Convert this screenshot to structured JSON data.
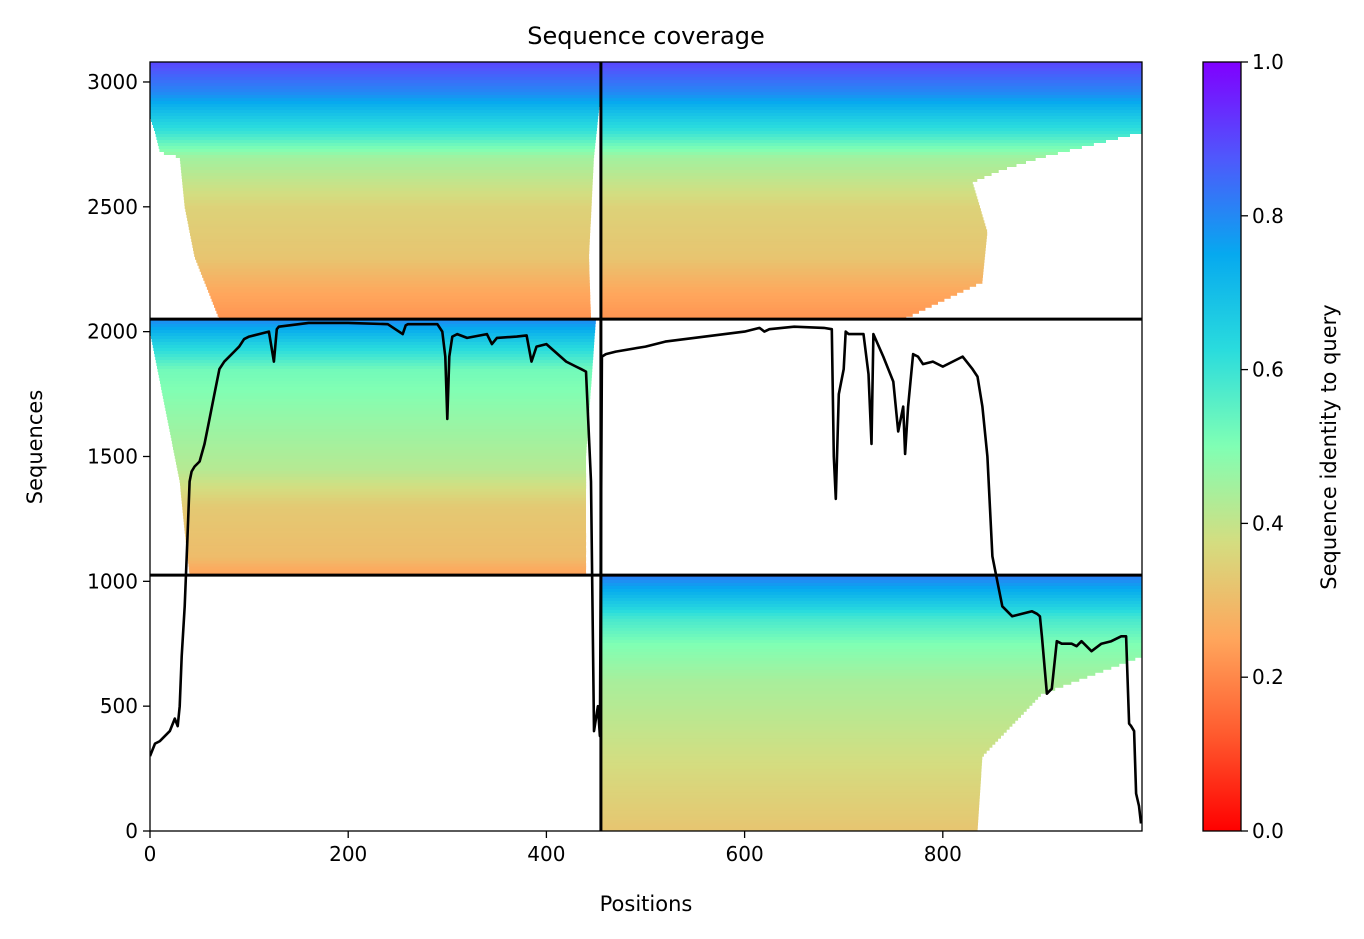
{
  "chart_data": {
    "type": "heatmap",
    "title": "Sequence coverage",
    "xlabel": "Positions",
    "ylabel": "Sequences",
    "xlim": [
      0,
      1001
    ],
    "ylim": [
      0,
      3080
    ],
    "xticks": [
      0,
      200,
      400,
      600,
      800
    ],
    "yticks": [
      0,
      500,
      1000,
      1500,
      2000,
      2500,
      3000
    ],
    "colorbar": {
      "label": "Sequence identity to query",
      "colormap": "rainbow",
      "range": [
        0,
        1
      ],
      "ticks": [
        "0.0",
        "0.2",
        "0.4",
        "0.6",
        "0.8",
        "1.0"
      ]
    },
    "block_boundaries": {
      "positions": [
        455
      ],
      "sequences": [
        1025,
        2050
      ]
    },
    "blocks": [
      {
        "x_range": [
          0,
          455
        ],
        "y_range": [
          2050,
          3080
        ],
        "start_profile": [
          [
            2050,
            70
          ],
          [
            2150,
            60
          ],
          [
            2300,
            45
          ],
          [
            2500,
            35
          ],
          [
            2700,
            30
          ],
          [
            2720,
            10
          ],
          [
            2800,
            5
          ],
          [
            2860,
            0
          ],
          [
            3080,
            0
          ]
        ],
        "end_profile": [
          [
            2050,
            445
          ],
          [
            2300,
            443
          ],
          [
            2700,
            448
          ],
          [
            2960,
            455
          ],
          [
            3080,
            455
          ]
        ],
        "identity_profile": [
          [
            2050,
            0.22
          ],
          [
            2150,
            0.25
          ],
          [
            2300,
            0.32
          ],
          [
            2500,
            0.35
          ],
          [
            2700,
            0.45
          ],
          [
            2800,
            0.6
          ],
          [
            2900,
            0.72
          ],
          [
            2960,
            0.8
          ],
          [
            3080,
            0.9
          ]
        ]
      },
      {
        "x_range": [
          455,
          1001
        ],
        "y_range": [
          2050,
          3080
        ],
        "start_profile": [
          [
            2050,
            455
          ],
          [
            3080,
            455
          ]
        ],
        "end_profile": [
          [
            2050,
            760
          ],
          [
            2200,
            840
          ],
          [
            2400,
            845
          ],
          [
            2600,
            830
          ],
          [
            2650,
            860
          ],
          [
            2700,
            900
          ],
          [
            2800,
            1001
          ],
          [
            3080,
            1001
          ]
        ],
        "identity_profile": [
          [
            2050,
            0.22
          ],
          [
            2150,
            0.25
          ],
          [
            2300,
            0.32
          ],
          [
            2500,
            0.35
          ],
          [
            2700,
            0.45
          ],
          [
            2800,
            0.6
          ],
          [
            2900,
            0.72
          ],
          [
            2960,
            0.8
          ],
          [
            3080,
            0.9
          ]
        ]
      },
      {
        "x_range": [
          0,
          455
        ],
        "y_range": [
          1025,
          2050
        ],
        "start_profile": [
          [
            1025,
            40
          ],
          [
            1200,
            35
          ],
          [
            1400,
            30
          ],
          [
            1700,
            15
          ],
          [
            1900,
            5
          ],
          [
            2000,
            0
          ],
          [
            2050,
            0
          ]
        ],
        "end_profile": [
          [
            1025,
            440
          ],
          [
            1500,
            440
          ],
          [
            2050,
            450
          ]
        ],
        "identity_profile": [
          [
            1025,
            0.24
          ],
          [
            1100,
            0.3
          ],
          [
            1300,
            0.33
          ],
          [
            1450,
            0.42
          ],
          [
            1700,
            0.48
          ],
          [
            1850,
            0.52
          ],
          [
            1950,
            0.65
          ],
          [
            2050,
            0.8
          ]
        ]
      },
      {
        "x_range": [
          455,
          1001
        ],
        "y_range": [
          0,
          1025
        ],
        "start_profile": [
          [
            0,
            455
          ],
          [
            1025,
            455
          ]
        ],
        "end_profile": [
          [
            0,
            835
          ],
          [
            300,
            840
          ],
          [
            550,
            900
          ],
          [
            700,
            1001
          ],
          [
            1025,
            1001
          ]
        ],
        "identity_profile": [
          [
            0,
            0.32
          ],
          [
            200,
            0.36
          ],
          [
            400,
            0.4
          ],
          [
            600,
            0.44
          ],
          [
            750,
            0.5
          ],
          [
            850,
            0.58
          ],
          [
            950,
            0.72
          ],
          [
            1025,
            0.82
          ]
        ]
      }
    ],
    "coverage_line": {
      "x": [
        0,
        5,
        10,
        20,
        25,
        28,
        30,
        32,
        35,
        38,
        40,
        42,
        45,
        50,
        55,
        60,
        65,
        70,
        75,
        80,
        85,
        90,
        95,
        100,
        110,
        120,
        125,
        128,
        130,
        140,
        150,
        160,
        200,
        240,
        255,
        258,
        260,
        290,
        295,
        298,
        300,
        302,
        305,
        310,
        320,
        340,
        345,
        350,
        370,
        380,
        385,
        390,
        400,
        420,
        430,
        435,
        440,
        445,
        448,
        452,
        454,
        456,
        460,
        470,
        500,
        520,
        560,
        600,
        615,
        620,
        625,
        650,
        680,
        688,
        690,
        692,
        695,
        700,
        702,
        705,
        720,
        725,
        728,
        730,
        740,
        750,
        755,
        760,
        762,
        765,
        770,
        775,
        780,
        790,
        800,
        820,
        830,
        835,
        840,
        845,
        850,
        855,
        860,
        870,
        880,
        890,
        895,
        898,
        900,
        905,
        910,
        915,
        920,
        930,
        935,
        940,
        950,
        960,
        970,
        980,
        985,
        988,
        990,
        993,
        995,
        998,
        1000
      ],
      "y": [
        300,
        350,
        360,
        400,
        450,
        420,
        500,
        700,
        900,
        1200,
        1400,
        1440,
        1460,
        1480,
        1550,
        1650,
        1750,
        1850,
        1880,
        1900,
        1920,
        1940,
        1970,
        1980,
        1990,
        2000,
        1880,
        2010,
        2020,
        2025,
        2030,
        2035,
        2035,
        2030,
        1990,
        2025,
        2030,
        2030,
        2000,
        1900,
        1650,
        1900,
        1980,
        1990,
        1975,
        1990,
        1950,
        1975,
        1980,
        1985,
        1880,
        1940,
        1950,
        1880,
        1860,
        1850,
        1840,
        1400,
        400,
        500,
        380,
        1900,
        1910,
        1920,
        1940,
        1960,
        1980,
        2000,
        2015,
        2000,
        2010,
        2020,
        2015,
        2010,
        1500,
        1330,
        1750,
        1850,
        2000,
        1990,
        1990,
        1830,
        1550,
        1990,
        1900,
        1800,
        1600,
        1700,
        1510,
        1700,
        1910,
        1900,
        1870,
        1880,
        1860,
        1900,
        1850,
        1820,
        1700,
        1500,
        1100,
        1000,
        900,
        860,
        870,
        880,
        870,
        860,
        780,
        550,
        570,
        760,
        750,
        750,
        740,
        760,
        720,
        750,
        760,
        780,
        780,
        430,
        420,
        400,
        150,
        100,
        30
      ]
    }
  }
}
